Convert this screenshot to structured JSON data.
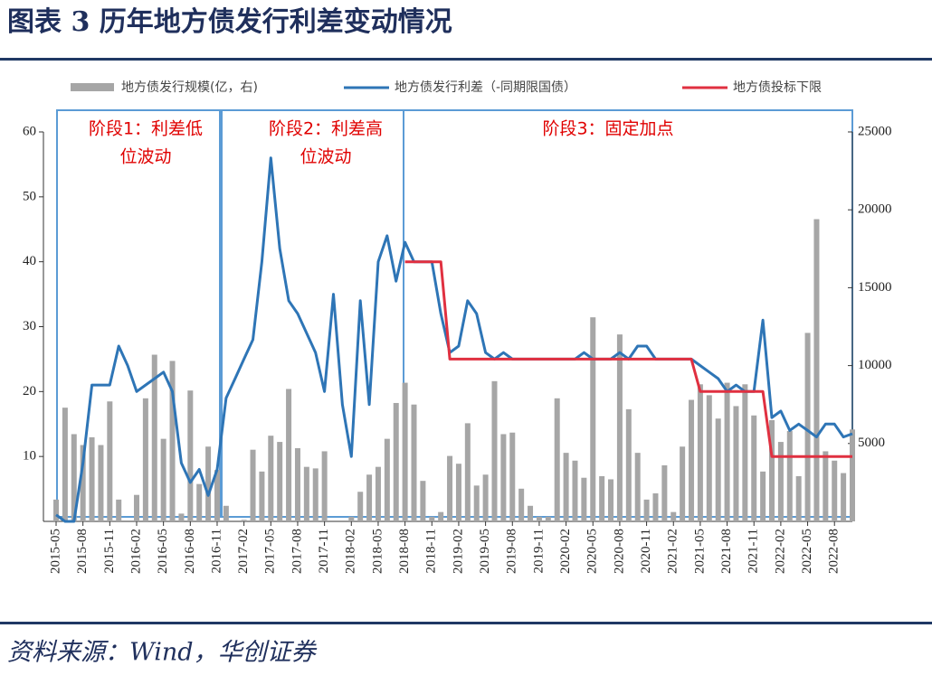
{
  "chart_data": {
    "type": "bar-line",
    "title": "图表 3  历年地方债发行利差变动情况",
    "source": "资料来源：Wind，华创证券",
    "categories": [
      "2015-05",
      null,
      null,
      "2015-08",
      null,
      null,
      "2015-11",
      null,
      null,
      "2016-02",
      null,
      null,
      "2016-05",
      null,
      null,
      "2016-08",
      null,
      null,
      "2016-11",
      null,
      null,
      "2017-02",
      null,
      null,
      "2017-05",
      null,
      null,
      "2017-08",
      null,
      null,
      "2017-11",
      null,
      null,
      "2018-02",
      null,
      null,
      "2018-05",
      null,
      null,
      "2018-08",
      null,
      null,
      "2018-11",
      null,
      null,
      "2019-02",
      null,
      null,
      "2019-05",
      null,
      null,
      "2019-08",
      null,
      null,
      "2019-11",
      null,
      null,
      "2020-02",
      null,
      null,
      "2020-05",
      null,
      null,
      "2020-08",
      null,
      null,
      "2020-11",
      null,
      null,
      "2021-02",
      null,
      null,
      "2021-05",
      null,
      null,
      "2021-08",
      null,
      null,
      "2021-11",
      null,
      null,
      "2022-02",
      null,
      null,
      "2022-05",
      null,
      null,
      "2022-08",
      null,
      null
    ],
    "series": [
      {
        "name": "地方债发行规模(亿，右)",
        "type": "bar",
        "axis": "y2",
        "color": "#a6a6a6",
        "values": [
          1400,
          7300,
          5600,
          4900,
          5400,
          4900,
          7700,
          1400,
          0,
          1700,
          7900,
          10700,
          5300,
          10300,
          500,
          8400,
          2400,
          4800,
          3300,
          1000,
          0,
          100,
          4600,
          3200,
          5500,
          5100,
          8500,
          4700,
          3500,
          3400,
          4500,
          0,
          0,
          300,
          1900,
          3000,
          3500,
          5300,
          7600,
          8900,
          7500,
          2600,
          300,
          600,
          4200,
          3700,
          6300,
          2300,
          3000,
          9000,
          5600,
          5700,
          2100,
          1000,
          300,
          300,
          7900,
          4400,
          3900,
          2800,
          13100,
          2900,
          2700,
          12000,
          7200,
          4400,
          1400,
          1800,
          3600,
          600,
          4800,
          7800,
          8800,
          8100,
          6600,
          8900,
          7400,
          8800,
          6800,
          3200,
          6500,
          5100,
          5800,
          2900,
          12100,
          19400,
          4500,
          3900,
          3100,
          5900
        ]
      },
      {
        "name": "地方债发行利差（-同期限国债）",
        "type": "line",
        "color": "#2e75b6",
        "values": [
          1,
          0,
          0,
          9,
          21,
          21,
          21,
          27,
          24,
          20,
          21,
          22,
          23,
          20,
          9,
          6,
          8,
          4,
          8,
          19,
          22,
          25,
          28,
          40,
          56,
          42,
          34,
          32,
          29,
          26,
          20,
          35,
          18,
          10,
          34,
          18,
          40,
          44,
          37,
          43,
          40,
          40,
          40,
          32,
          26,
          27,
          34,
          32,
          26,
          25,
          26,
          25,
          25,
          25,
          25,
          25,
          25,
          25,
          25,
          26,
          25,
          25,
          25,
          26,
          25,
          27,
          27,
          25,
          25,
          25,
          25,
          25,
          24,
          23,
          22,
          20,
          21,
          20,
          20,
          31,
          16,
          17,
          14,
          15,
          14,
          13,
          15,
          15,
          13,
          13.5
        ]
      },
      {
        "name": "地方债投标下限",
        "type": "line",
        "color": "#e03040",
        "values": [
          null,
          null,
          null,
          null,
          null,
          null,
          null,
          null,
          null,
          null,
          null,
          null,
          null,
          null,
          null,
          null,
          null,
          null,
          null,
          null,
          null,
          null,
          null,
          null,
          null,
          null,
          null,
          null,
          null,
          null,
          null,
          null,
          null,
          null,
          null,
          null,
          null,
          null,
          null,
          40,
          40,
          40,
          40,
          40,
          25,
          25,
          25,
          25,
          25,
          25,
          25,
          25,
          25,
          25,
          25,
          25,
          25,
          25,
          25,
          25,
          25,
          25,
          25,
          25,
          25,
          25,
          25,
          25,
          25,
          25,
          25,
          25,
          20,
          20,
          20,
          20,
          20,
          20,
          20,
          20,
          10,
          10,
          10,
          10,
          10,
          10,
          10,
          10,
          10,
          10
        ]
      }
    ],
    "annotations": [
      [
        "阶段1：利差低",
        "位波动"
      ],
      [
        "阶段2：利差高",
        "位波动"
      ],
      [
        "阶段3：固定加点"
      ]
    ],
    "ylim": [
      0,
      60
    ],
    "yticks": [
      10,
      20,
      30,
      40,
      50,
      60
    ],
    "y2lim": [
      0,
      25000
    ],
    "y2ticks": [
      5000,
      10000,
      15000,
      20000,
      25000
    ]
  }
}
